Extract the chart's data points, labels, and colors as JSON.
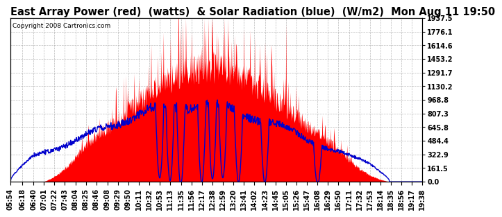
{
  "title": "East Array Power (red)  (watts)  & Solar Radiation (blue)  (W/m2)  Mon Aug 11 19:50",
  "copyright": "Copyright 2008 Cartronics.com",
  "background_color": "#ffffff",
  "plot_bg_color": "#ffffff",
  "grid_color": "#aaaaaa",
  "yticks": [
    0.0,
    161.5,
    322.9,
    484.4,
    645.8,
    807.3,
    968.8,
    1130.2,
    1291.7,
    1453.2,
    1614.6,
    1776.1,
    1937.5
  ],
  "ylim": [
    0,
    1937.5
  ],
  "x_labels": [
    "05:54",
    "06:18",
    "06:40",
    "07:01",
    "07:22",
    "07:43",
    "08:04",
    "08:25",
    "08:46",
    "09:08",
    "09:29",
    "09:50",
    "10:11",
    "10:32",
    "10:53",
    "11:13",
    "11:35",
    "11:56",
    "12:17",
    "12:38",
    "12:59",
    "13:20",
    "13:41",
    "14:02",
    "14:23",
    "14:45",
    "15:05",
    "15:26",
    "15:47",
    "16:08",
    "16:29",
    "16:50",
    "17:11",
    "17:32",
    "17:53",
    "18:14",
    "18:35",
    "18:56",
    "19:17",
    "19:38"
  ],
  "power_color": "#ff0000",
  "solar_color": "#0000cc",
  "title_fontsize": 10.5,
  "tick_fontsize": 7,
  "copyright_fontsize": 6.5
}
